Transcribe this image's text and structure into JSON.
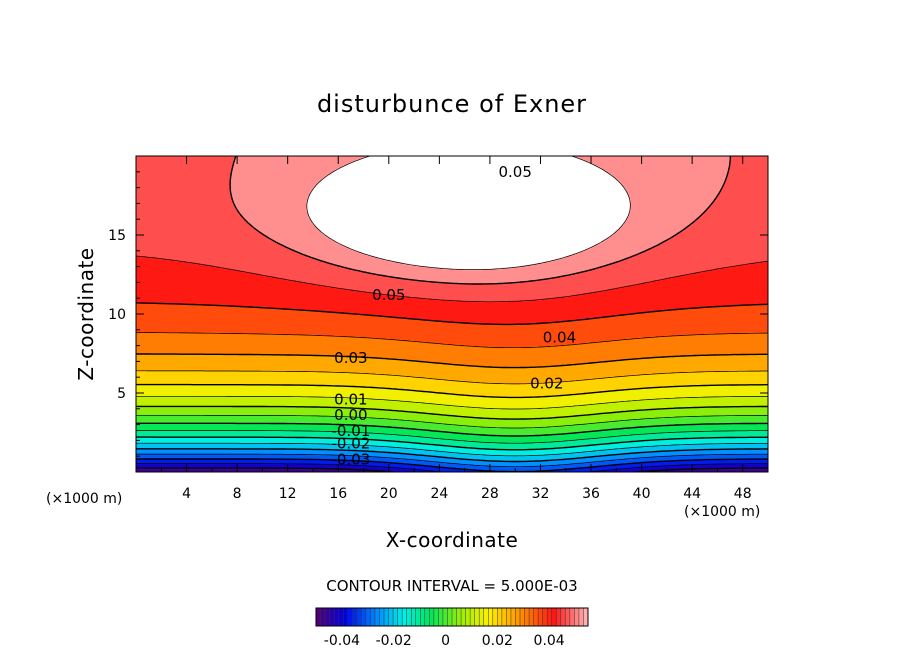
{
  "chart_data": {
    "type": "contour",
    "title": "disturbunce of Exner",
    "xlabel": "X-coordinate",
    "ylabel": "Z-coordinate",
    "x_unit": "(×1000 m)",
    "z_unit": "(×1000 m)",
    "xlim": [
      0,
      50
    ],
    "ylim": [
      0,
      20
    ],
    "x_ticks": [
      4,
      8,
      12,
      16,
      20,
      24,
      28,
      32,
      36,
      40,
      44,
      48
    ],
    "y_ticks": [
      5,
      10,
      15
    ],
    "contour_interval_text": "CONTOUR INTERVAL = 5.000E-03",
    "levels_min": -0.045,
    "levels_max": 0.055,
    "level_step": 0.005,
    "contour_labels": [
      {
        "text": "0.05",
        "x": 30.0,
        "z": 19.0
      },
      {
        "text": "0.05",
        "x": 20.0,
        "z": 11.2
      },
      {
        "text": "0.04",
        "x": 33.5,
        "z": 8.5
      },
      {
        "text": "0.03",
        "x": 17.0,
        "z": 7.2
      },
      {
        "text": "0.02",
        "x": 32.5,
        "z": 5.6
      },
      {
        "text": "0.01",
        "x": 17.0,
        "z": 4.6
      },
      {
        "text": "0.00",
        "x": 17.0,
        "z": 3.6
      },
      {
        "text": "-0.01",
        "x": 17.0,
        "z": 2.6
      },
      {
        "text": "-0.02",
        "x": 17.0,
        "z": 1.8
      },
      {
        "text": "-0.03",
        "x": 17.0,
        "z": 0.8
      }
    ],
    "colorbar": {
      "min": -0.05,
      "max": 0.055,
      "ticks": [
        "-0.04",
        "-0.02",
        "0",
        "0.02",
        "0.04"
      ],
      "tick_values": [
        -0.04,
        -0.02,
        0,
        0.02,
        0.04
      ]
    }
  }
}
